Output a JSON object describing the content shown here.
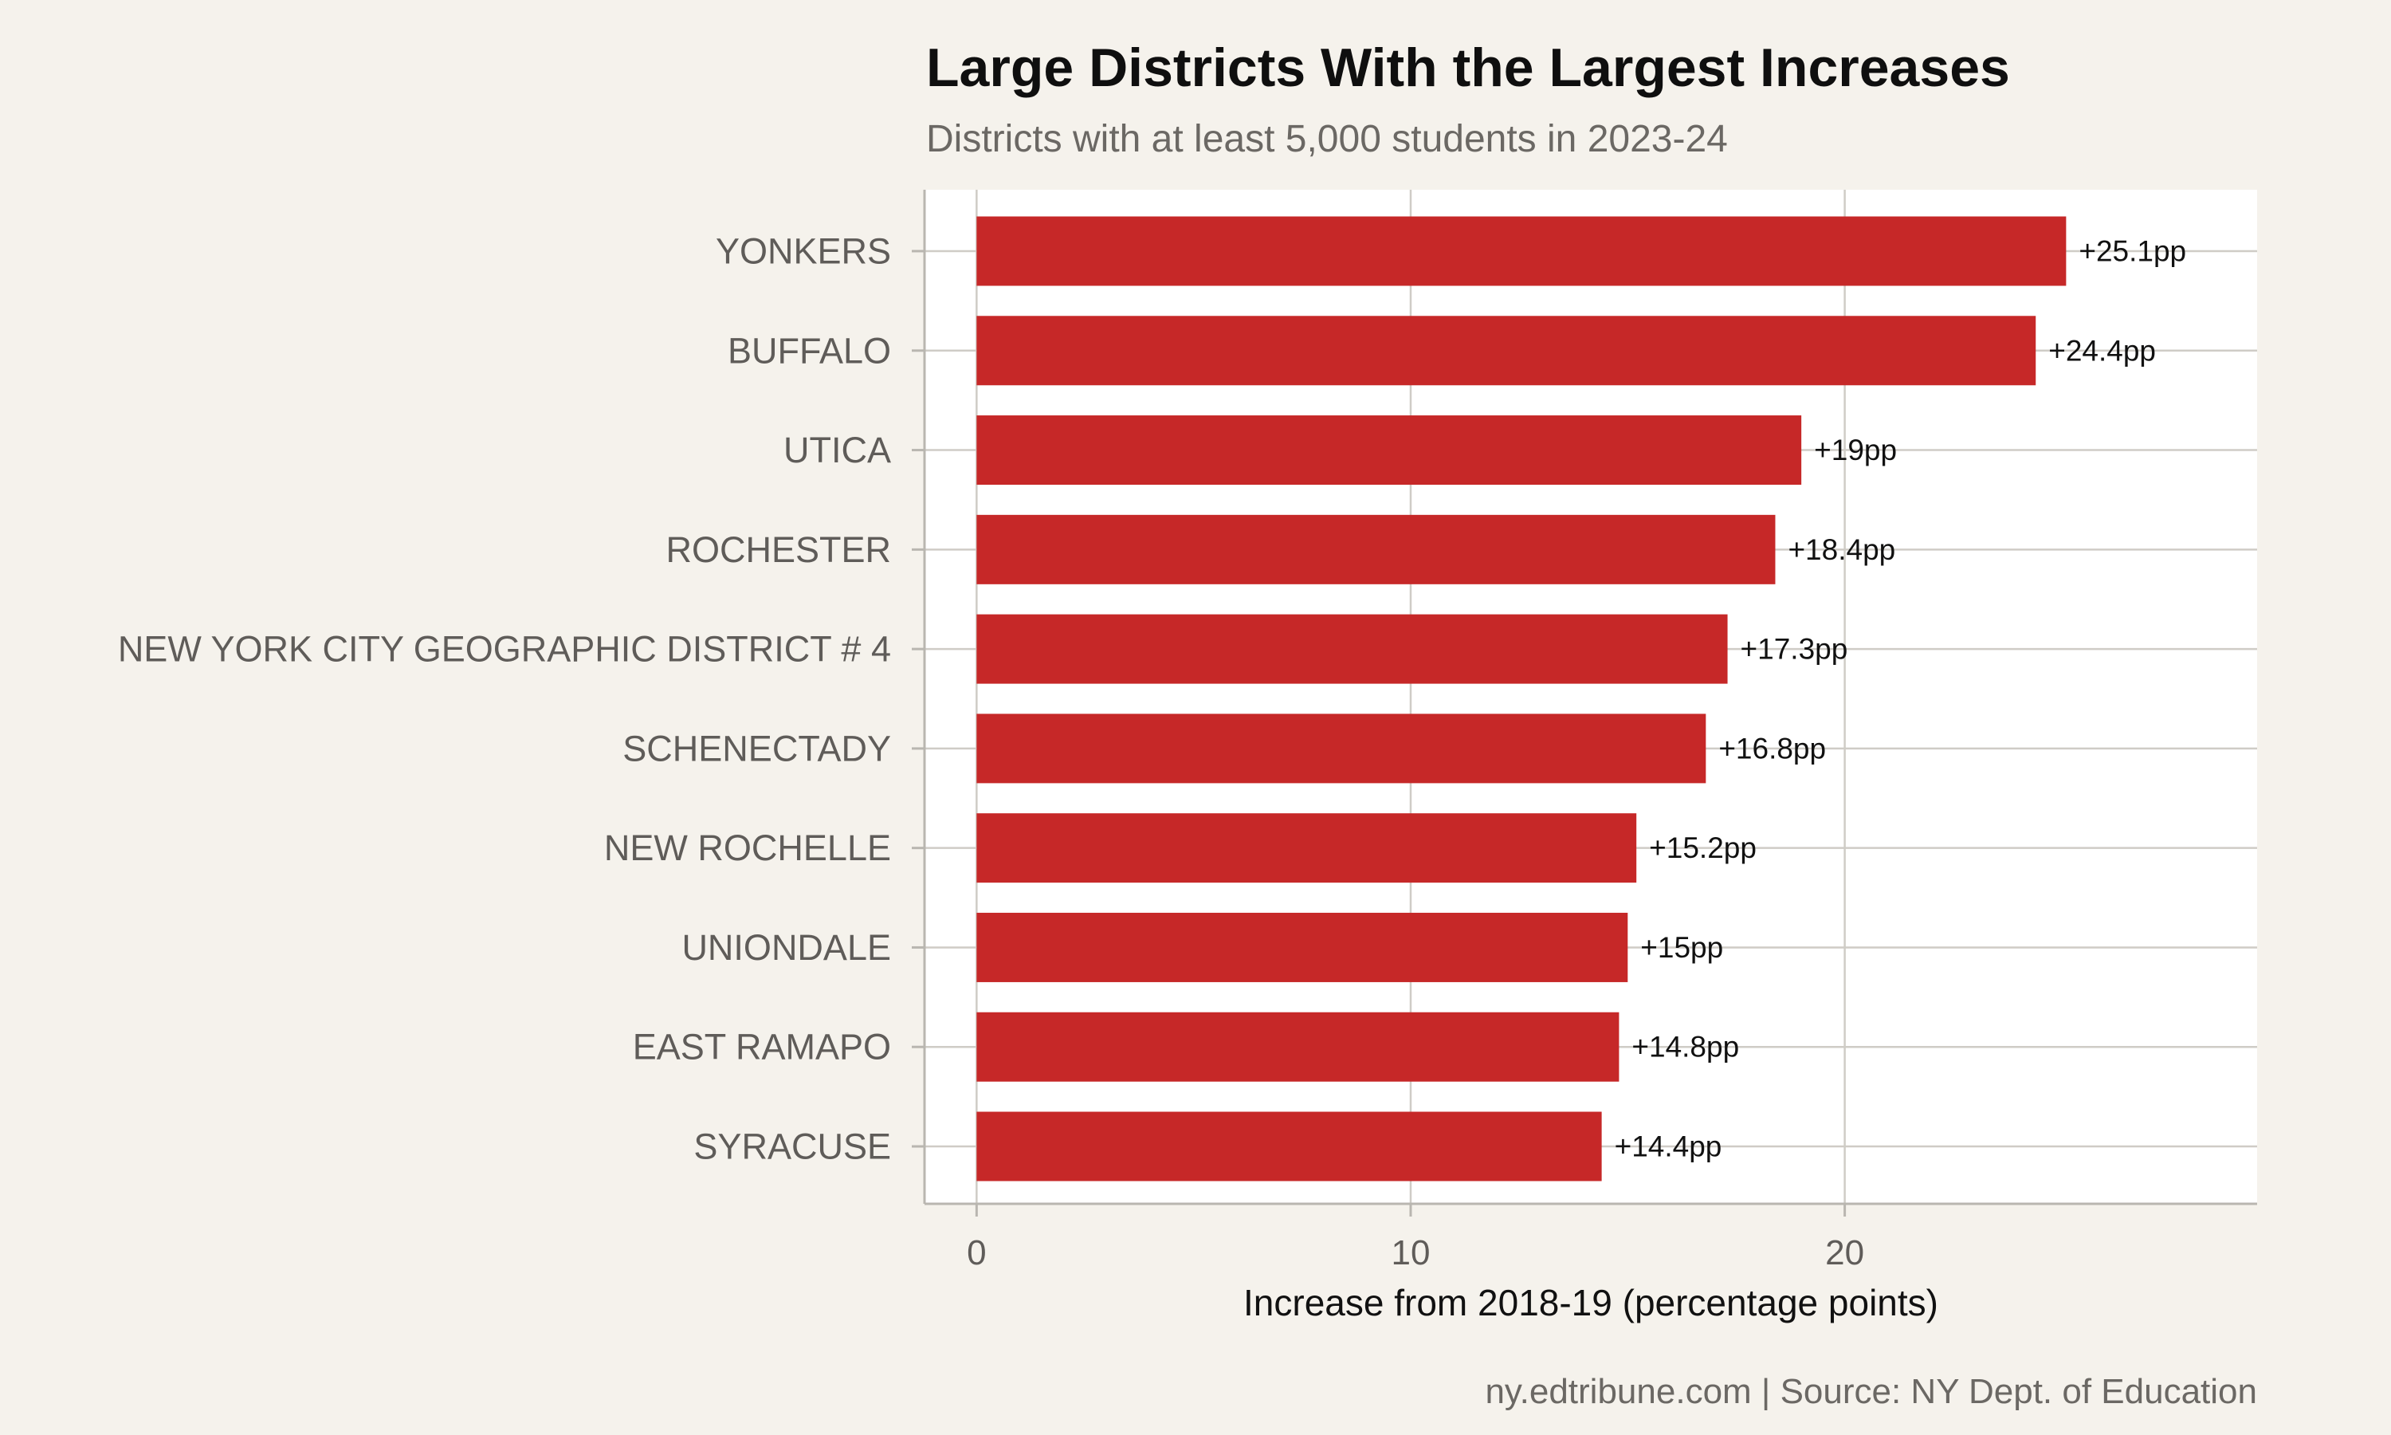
{
  "chart_data": {
    "type": "bar",
    "orientation": "horizontal",
    "title": "Large Districts With the Largest Increases",
    "subtitle": "Districts with at least 5,000 students in 2023-24",
    "xlabel": "Increase from 2018-19 (percentage points)",
    "ylabel": "",
    "caption": "ny.edtribune.com | Source: NY Dept. of Education",
    "categories": [
      "YONKERS",
      "BUFFALO",
      "UTICA",
      "ROCHESTER",
      "NEW YORK CITY GEOGRAPHIC DISTRICT # 4",
      "SCHENECTADY",
      "NEW ROCHELLE",
      "UNIONDALE",
      "EAST RAMAPO",
      "SYRACUSE"
    ],
    "values": [
      25.1,
      24.4,
      19.0,
      18.4,
      17.3,
      16.8,
      15.2,
      15.0,
      14.8,
      14.4
    ],
    "value_labels": [
      "+25.1pp",
      "+24.4pp",
      "+19pp",
      "+18.4pp",
      "+17.3pp",
      "+16.8pp",
      "+15.2pp",
      "+15pp",
      "+14.8pp",
      "+14.4pp"
    ],
    "xticks": [
      0,
      10,
      20
    ],
    "xtick_labels": [
      "0",
      "10",
      "20"
    ],
    "xlim": [
      -1.2,
      29.5
    ],
    "grid": true,
    "legend": "none",
    "colors": {
      "bar": "#C62828",
      "page_background": "#F5F2EC",
      "panel_background": "#FFFFFF",
      "gridline": "#CFCCC6"
    }
  }
}
